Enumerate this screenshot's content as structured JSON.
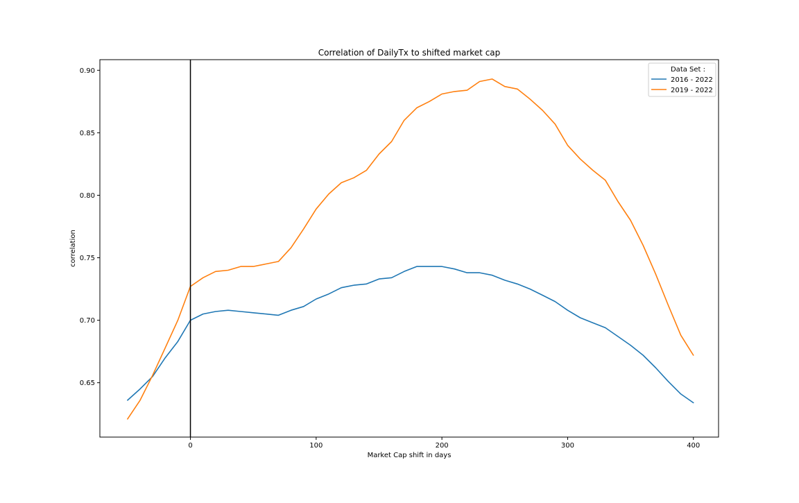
{
  "chart_data": {
    "type": "line",
    "title": "Correlation of DailyTx to shifted market cap",
    "xlabel": "Market Cap shift in days",
    "ylabel": "correlation",
    "xlim": [
      -72,
      420
    ],
    "ylim": [
      0.6065,
      0.9085
    ],
    "xticks": [
      0,
      100,
      200,
      300,
      400
    ],
    "xtick_labels": [
      "0",
      "100",
      "200",
      "300",
      "400"
    ],
    "yticks": [
      0.65,
      0.7,
      0.75,
      0.8,
      0.85,
      0.9
    ],
    "ytick_labels": [
      "0.65",
      "0.70",
      "0.75",
      "0.80",
      "0.85",
      "0.90"
    ],
    "grid": false,
    "vline": {
      "x": 0,
      "color": "#000000"
    },
    "legend": {
      "title": "Data Set :",
      "placement": "top-right"
    },
    "series": [
      {
        "name": "2016 - 2022",
        "color": "#1f77b4",
        "points": [
          [
            -50,
            0.636
          ],
          [
            -40,
            0.645
          ],
          [
            -30,
            0.655
          ],
          [
            -20,
            0.67
          ],
          [
            -10,
            0.683
          ],
          [
            0,
            0.7
          ],
          [
            10,
            0.705
          ],
          [
            20,
            0.707
          ],
          [
            30,
            0.708
          ],
          [
            40,
            0.707
          ],
          [
            50,
            0.706
          ],
          [
            60,
            0.705
          ],
          [
            70,
            0.704
          ],
          [
            80,
            0.708
          ],
          [
            90,
            0.711
          ],
          [
            100,
            0.717
          ],
          [
            110,
            0.721
          ],
          [
            120,
            0.726
          ],
          [
            130,
            0.728
          ],
          [
            140,
            0.729
          ],
          [
            150,
            0.733
          ],
          [
            160,
            0.734
          ],
          [
            170,
            0.739
          ],
          [
            180,
            0.743
          ],
          [
            190,
            0.743
          ],
          [
            200,
            0.743
          ],
          [
            210,
            0.741
          ],
          [
            220,
            0.738
          ],
          [
            230,
            0.738
          ],
          [
            240,
            0.736
          ],
          [
            250,
            0.732
          ],
          [
            260,
            0.729
          ],
          [
            270,
            0.725
          ],
          [
            280,
            0.72
          ],
          [
            290,
            0.715
          ],
          [
            300,
            0.708
          ],
          [
            310,
            0.702
          ],
          [
            320,
            0.698
          ],
          [
            330,
            0.694
          ],
          [
            340,
            0.687
          ],
          [
            350,
            0.68
          ],
          [
            360,
            0.672
          ],
          [
            370,
            0.662
          ],
          [
            380,
            0.651
          ],
          [
            390,
            0.641
          ],
          [
            400,
            0.634
          ]
        ]
      },
      {
        "name": "2019 - 2022",
        "color": "#ff7f0e",
        "points": [
          [
            -50,
            0.621
          ],
          [
            -40,
            0.636
          ],
          [
            -30,
            0.656
          ],
          [
            -20,
            0.678
          ],
          [
            -10,
            0.7
          ],
          [
            0,
            0.727
          ],
          [
            10,
            0.734
          ],
          [
            20,
            0.739
          ],
          [
            30,
            0.74
          ],
          [
            40,
            0.743
          ],
          [
            50,
            0.743
          ],
          [
            60,
            0.745
          ],
          [
            70,
            0.747
          ],
          [
            80,
            0.758
          ],
          [
            90,
            0.773
          ],
          [
            100,
            0.789
          ],
          [
            110,
            0.801
          ],
          [
            120,
            0.81
          ],
          [
            130,
            0.814
          ],
          [
            140,
            0.82
          ],
          [
            150,
            0.833
          ],
          [
            160,
            0.843
          ],
          [
            170,
            0.86
          ],
          [
            180,
            0.87
          ],
          [
            190,
            0.875
          ],
          [
            200,
            0.881
          ],
          [
            210,
            0.883
          ],
          [
            220,
            0.884
          ],
          [
            230,
            0.891
          ],
          [
            240,
            0.893
          ],
          [
            250,
            0.887
          ],
          [
            260,
            0.885
          ],
          [
            270,
            0.877
          ],
          [
            280,
            0.868
          ],
          [
            290,
            0.857
          ],
          [
            300,
            0.84
          ],
          [
            310,
            0.829
          ],
          [
            320,
            0.82
          ],
          [
            330,
            0.812
          ],
          [
            340,
            0.795
          ],
          [
            350,
            0.78
          ],
          [
            360,
            0.76
          ],
          [
            370,
            0.737
          ],
          [
            380,
            0.712
          ],
          [
            390,
            0.688
          ],
          [
            400,
            0.672
          ]
        ]
      }
    ]
  }
}
